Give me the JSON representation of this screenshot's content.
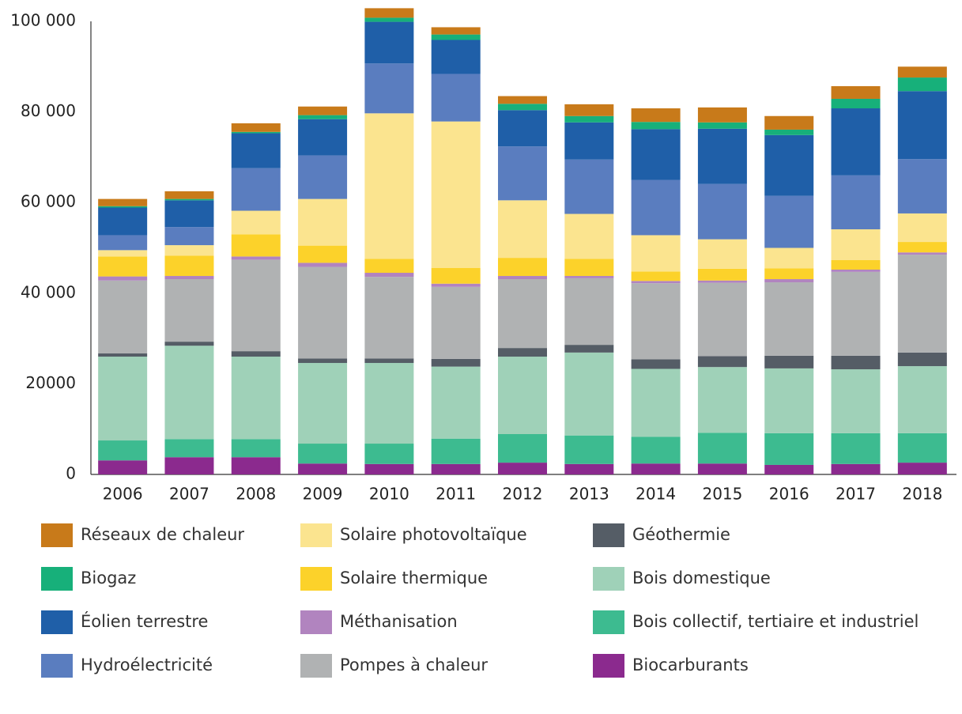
{
  "chart_data": {
    "type": "stacked_bar",
    "categories": [
      "2006",
      "2007",
      "2008",
      "2009",
      "2010",
      "2011",
      "2012",
      "2013",
      "2014",
      "2015",
      "2016",
      "2017",
      "2018"
    ],
    "ylim": [
      0,
      100000
    ],
    "yticks": [
      0,
      20000,
      {
        "value": 40000,
        "label": "40 000"
      },
      {
        "value": 60000,
        "label": "60 000"
      },
      {
        "value": 80000,
        "label": "80 000"
      },
      {
        "value": 100000,
        "label": "100 000"
      }
    ],
    "grid": false,
    "legend": "bottom",
    "series": [
      {
        "name": "Biocarburants",
        "color": "#8b2a8e",
        "values": [
          3100,
          3800,
          3800,
          2400,
          2300,
          2300,
          2600,
          2300,
          2400,
          2400,
          2100,
          2300,
          2600
        ]
      },
      {
        "name": "Bois collectif, tertiaire et industriel",
        "color": "#3dbb90",
        "values": [
          4400,
          4000,
          4000,
          4400,
          4500,
          5600,
          6300,
          6300,
          5900,
          6800,
          7000,
          6800,
          6500
        ]
      },
      {
        "name": "Bois domestique",
        "color": "#9fd1b8",
        "values": [
          18500,
          20600,
          18200,
          17800,
          17800,
          15900,
          17100,
          18300,
          15000,
          14500,
          14300,
          14100,
          14800
        ]
      },
      {
        "name": "Géothermie",
        "color": "#555d66",
        "values": [
          700,
          900,
          1200,
          1000,
          1000,
          1700,
          1900,
          1700,
          2100,
          2400,
          2800,
          3000,
          3000
        ]
      },
      {
        "name": "Pompes à chaleur",
        "color": "#b0b2b3",
        "values": [
          16100,
          13800,
          20200,
          20200,
          18000,
          15900,
          15200,
          14700,
          16800,
          16200,
          16200,
          18500,
          21600
        ]
      },
      {
        "name": "Méthanisation",
        "color": "#b184bf",
        "values": [
          900,
          700,
          700,
          900,
          900,
          700,
          700,
          500,
          500,
          500,
          700,
          500,
          500
        ]
      },
      {
        "name": "Solaire thermique",
        "color": "#fcd22a",
        "values": [
          4400,
          4500,
          4900,
          3800,
          3100,
          3500,
          4000,
          3800,
          2100,
          2600,
          2400,
          2100,
          2300
        ]
      },
      {
        "name": "Solaire photovoltaïque",
        "color": "#fbe48f",
        "values": [
          1400,
          2300,
          5200,
          10300,
          32100,
          32300,
          12700,
          9900,
          8000,
          6500,
          4500,
          6800,
          6300
        ]
      },
      {
        "name": "Hydroélectricité",
        "color": "#5a7dbf",
        "values": [
          3300,
          4000,
          9400,
          9600,
          11000,
          10500,
          11900,
          12000,
          12200,
          12200,
          11500,
          11900,
          12000
        ]
      },
      {
        "name": "Éolien terrestre",
        "color": "#1f5fa8",
        "values": [
          6100,
          5900,
          7700,
          8000,
          9200,
          7500,
          8000,
          8200,
          11200,
          12200,
          13400,
          14800,
          15000
        ]
      },
      {
        "name": "Biogaz",
        "color": "#17b07a",
        "values": [
          300,
          300,
          300,
          900,
          900,
          1200,
          1400,
          1400,
          1600,
          1400,
          1200,
          2100,
          3000
        ]
      },
      {
        "name": "Réseaux de chaleur",
        "color": "#c87a1a",
        "values": [
          1600,
          1700,
          1900,
          1900,
          2100,
          1600,
          1700,
          2600,
          3000,
          3300,
          3000,
          2800,
          2400
        ]
      }
    ]
  }
}
